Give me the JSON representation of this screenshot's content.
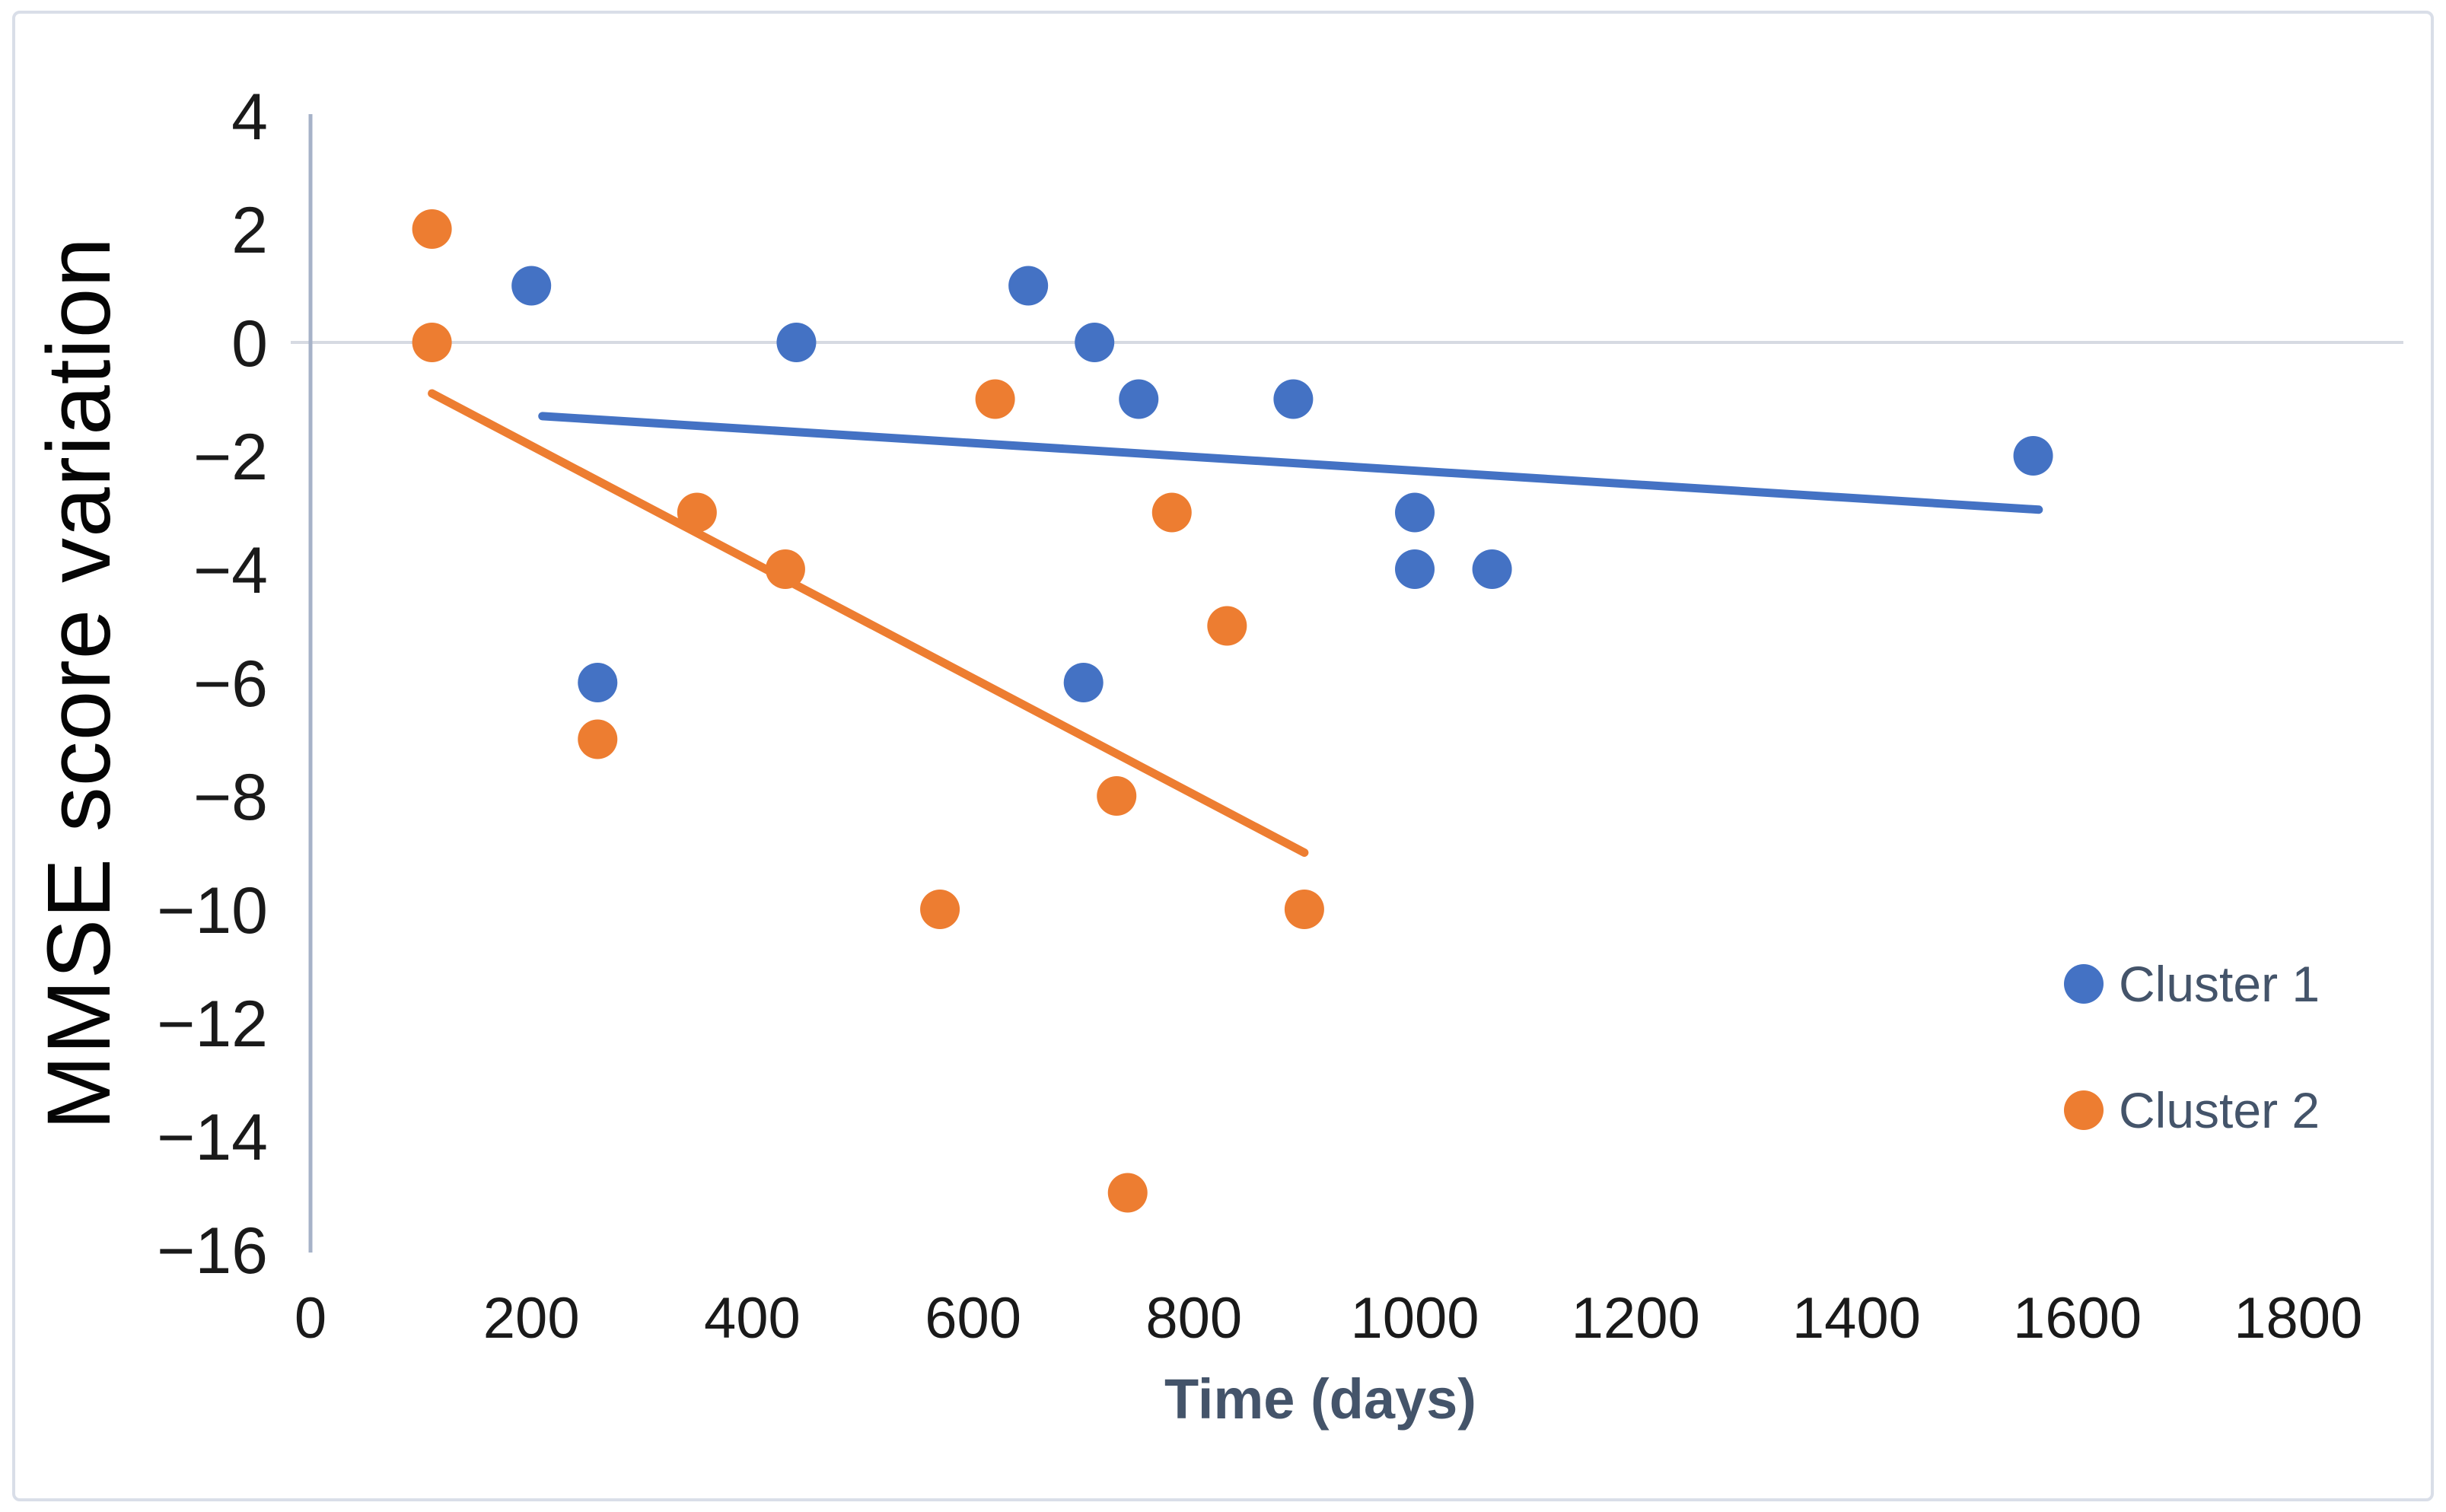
{
  "chart_data": {
    "type": "scatter",
    "title": "",
    "xlabel": "Time (days)",
    "ylabel": "MMSE score variation",
    "xlim": [
      0,
      1900
    ],
    "ylim": [
      -16,
      4
    ],
    "x_ticks": [
      0,
      200,
      400,
      600,
      800,
      1000,
      1200,
      1400,
      1600,
      1800
    ],
    "y_ticks": [
      4,
      2,
      0,
      -2,
      -4,
      -6,
      -8,
      -10,
      -12,
      -14,
      -16
    ],
    "grid": "single horizontal gridline at y=0 only",
    "legend_position": "middle-right",
    "series": [
      {
        "name": "Cluster 1",
        "color": "#4472C4",
        "marker": "circle",
        "points": [
          [
            200,
            1
          ],
          [
            260,
            -6
          ],
          [
            440,
            0
          ],
          [
            650,
            1
          ],
          [
            700,
            -6
          ],
          [
            710,
            0
          ],
          [
            750,
            -1
          ],
          [
            890,
            -1
          ],
          [
            1000,
            -3
          ],
          [
            1000,
            -4
          ],
          [
            1070,
            -4
          ],
          [
            1560,
            -2
          ]
        ],
        "trendline": {
          "x1": 210,
          "y1": -1.3,
          "x2": 1565,
          "y2": -2.95
        }
      },
      {
        "name": "Cluster 2",
        "color": "#ED7D31",
        "marker": "circle",
        "points": [
          [
            110,
            2
          ],
          [
            110,
            0
          ],
          [
            260,
            -7
          ],
          [
            350,
            -3
          ],
          [
            430,
            -4
          ],
          [
            570,
            -10
          ],
          [
            620,
            -1
          ],
          [
            730,
            -8
          ],
          [
            740,
            -15
          ],
          [
            780,
            -3
          ],
          [
            830,
            -5
          ],
          [
            900,
            -10
          ]
        ],
        "trendline": {
          "x1": 110,
          "y1": -0.9,
          "x2": 900,
          "y2": -9.0
        }
      }
    ],
    "styles": {
      "background": "#FFFFFF",
      "frame_border_color": "#D9DEE8",
      "axis_line_color": "#A6B2C8",
      "zero_line_color": "#D6DAE2",
      "tick_label_color": "#1A1A1A",
      "x_title_color": "#44546A",
      "y_title_color": "#050505",
      "legend_text_color": "#44546A"
    }
  },
  "legend": {
    "items": [
      {
        "label": "Cluster 1",
        "color": "#4472C4"
      },
      {
        "label": "Cluster 2",
        "color": "#ED7D31"
      }
    ]
  }
}
